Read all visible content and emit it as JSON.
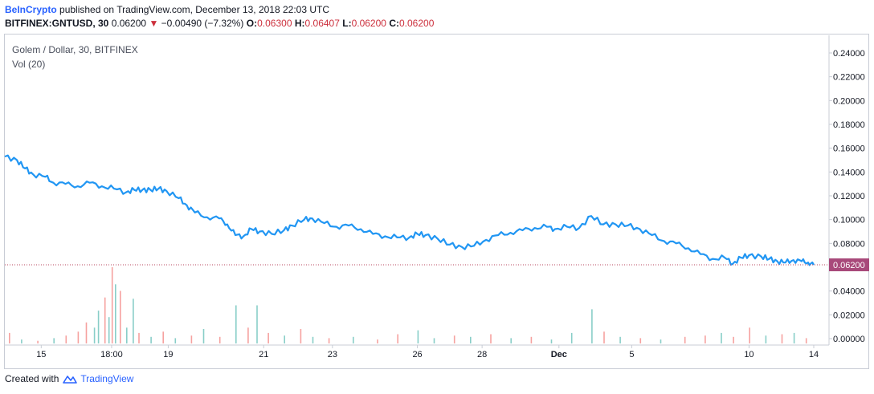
{
  "header": {
    "publisher": "BeInCrypto",
    "published_text": "published on TradingView.com, December 13, 2018 22:03 UTC",
    "symbol": "BITFINEX:GNTUSD, 30",
    "last": "0.06200",
    "change": "−0.00490 (−7.32%)",
    "o_label": "O:",
    "o_value": "0.06300",
    "h_label": "H:",
    "h_value": "0.06407",
    "l_label": "L:",
    "l_value": "0.06200",
    "c_label": "C:",
    "c_value": "0.06200"
  },
  "legend": {
    "title": "Golem / Dollar, 30, BITFINEX",
    "volume": "Vol (20)"
  },
  "footer": {
    "created_with": "Created with",
    "brand": "TradingView"
  },
  "colors": {
    "price_line": "#2196f3",
    "last_price_tag": "#a8497a",
    "volume_up": "#26a69a",
    "volume_down": "#ef5350",
    "axis_text": "#131722",
    "grid_border": "#c8ccd5"
  },
  "chart_data": {
    "type": "line",
    "grid": false,
    "y_axis": {
      "position": "right",
      "ticks": [
        "0.24000",
        "0.22000",
        "0.20000",
        "0.18000",
        "0.16000",
        "0.14000",
        "0.12000",
        "0.10000",
        "0.08000",
        "0.06000",
        "0.04000",
        "0.02000",
        "0.00000"
      ],
      "ylim": [
        0.0,
        0.245
      ]
    },
    "x_axis": {
      "ticks": [
        "15",
        "18:00",
        "19",
        "21",
        "23",
        "26",
        "28",
        "Dec",
        "5",
        "10",
        "14"
      ],
      "bold_ticks": [
        "Dec"
      ],
      "xlim": [
        0,
        100
      ]
    },
    "last_price_label": "0.06200",
    "last_price_value": 0.062,
    "series": [
      {
        "points": [
          [
            0,
            0.153
          ],
          [
            1.5,
            0.15
          ],
          [
            2.5,
            0.143
          ],
          [
            3.5,
            0.138
          ],
          [
            5,
            0.136
          ],
          [
            6,
            0.131
          ],
          [
            7.5,
            0.13
          ],
          [
            9,
            0.128
          ],
          [
            10.5,
            0.131
          ],
          [
            12,
            0.128
          ],
          [
            13.5,
            0.126
          ],
          [
            15,
            0.123
          ],
          [
            16,
            0.125
          ],
          [
            17,
            0.125
          ],
          [
            18,
            0.125
          ],
          [
            19,
            0.126
          ],
          [
            20,
            0.124
          ],
          [
            21.5,
            0.118
          ],
          [
            22.5,
            0.112
          ],
          [
            23.5,
            0.106
          ],
          [
            25,
            0.102
          ],
          [
            26.5,
            0.101
          ],
          [
            27.5,
            0.096
          ],
          [
            28.5,
            0.087
          ],
          [
            29.5,
            0.086
          ],
          [
            30.5,
            0.092
          ],
          [
            31.5,
            0.09
          ],
          [
            33,
            0.088
          ],
          [
            34.5,
            0.091
          ],
          [
            35.5,
            0.095
          ],
          [
            37,
            0.1
          ],
          [
            38,
            0.101
          ],
          [
            39.5,
            0.097
          ],
          [
            41,
            0.094
          ],
          [
            42.5,
            0.095
          ],
          [
            44,
            0.092
          ],
          [
            45.5,
            0.088
          ],
          [
            47,
            0.086
          ],
          [
            48.5,
            0.085
          ],
          [
            50,
            0.085
          ],
          [
            51,
            0.088
          ],
          [
            52,
            0.087
          ],
          [
            53.5,
            0.084
          ],
          [
            55,
            0.079
          ],
          [
            56.5,
            0.077
          ],
          [
            58,
            0.078
          ],
          [
            59.5,
            0.083
          ],
          [
            61,
            0.087
          ],
          [
            62.5,
            0.089
          ],
          [
            64,
            0.091
          ],
          [
            65.5,
            0.093
          ],
          [
            67,
            0.094
          ],
          [
            68,
            0.092
          ],
          [
            69.5,
            0.094
          ],
          [
            71,
            0.093
          ],
          [
            72.5,
            0.103
          ],
          [
            74,
            0.096
          ],
          [
            75.5,
            0.096
          ],
          [
            77,
            0.095
          ],
          [
            78.5,
            0.092
          ],
          [
            80,
            0.087
          ],
          [
            81.5,
            0.082
          ],
          [
            83,
            0.08
          ],
          [
            84.5,
            0.076
          ],
          [
            86,
            0.071
          ],
          [
            87.5,
            0.067
          ],
          [
            89,
            0.068
          ],
          [
            90,
            0.063
          ],
          [
            91,
            0.068
          ],
          [
            92,
            0.07
          ],
          [
            93.5,
            0.069
          ],
          [
            94.5,
            0.067
          ],
          [
            95.5,
            0.065
          ],
          [
            96.5,
            0.064
          ],
          [
            97.5,
            0.066
          ],
          [
            98.5,
            0.065
          ],
          [
            99.3,
            0.064
          ],
          [
            100,
            0.062
          ]
        ]
      }
    ],
    "volume": {
      "scale_max": 0.058,
      "bars": [
        [
          0.5,
          0.008,
          "down"
        ],
        [
          2,
          0.003,
          "up"
        ],
        [
          4,
          0.002,
          "down"
        ],
        [
          6,
          0.004,
          "up"
        ],
        [
          7.5,
          0.006,
          "down"
        ],
        [
          9,
          0.009,
          "down"
        ],
        [
          10,
          0.016,
          "down"
        ],
        [
          11,
          0.012,
          "up"
        ],
        [
          11.5,
          0.025,
          "up"
        ],
        [
          12.3,
          0.035,
          "down"
        ],
        [
          12.8,
          0.02,
          "up"
        ],
        [
          13.2,
          0.058,
          "down"
        ],
        [
          13.6,
          0.045,
          "up"
        ],
        [
          14.2,
          0.04,
          "down"
        ],
        [
          15,
          0.012,
          "up"
        ],
        [
          15.8,
          0.034,
          "up"
        ],
        [
          16.5,
          0.008,
          "down"
        ],
        [
          18,
          0.005,
          "up"
        ],
        [
          19.5,
          0.009,
          "down"
        ],
        [
          21,
          0.004,
          "up"
        ],
        [
          23,
          0.006,
          "down"
        ],
        [
          24.5,
          0.011,
          "up"
        ],
        [
          26.5,
          0.005,
          "down"
        ],
        [
          28.5,
          0.029,
          "up"
        ],
        [
          30,
          0.012,
          "down"
        ],
        [
          31.1,
          0.029,
          "up"
        ],
        [
          32.5,
          0.008,
          "down"
        ],
        [
          34.5,
          0.006,
          "up"
        ],
        [
          36.5,
          0.011,
          "down"
        ],
        [
          38,
          0.005,
          "up"
        ],
        [
          40,
          0.004,
          "down"
        ],
        [
          43,
          0.005,
          "up"
        ],
        [
          46,
          0.003,
          "down"
        ],
        [
          48.5,
          0.007,
          "down"
        ],
        [
          51,
          0.01,
          "up"
        ],
        [
          53,
          0.004,
          "up"
        ],
        [
          55.5,
          0.006,
          "down"
        ],
        [
          57.5,
          0.005,
          "up"
        ],
        [
          60,
          0.007,
          "down"
        ],
        [
          62.5,
          0.004,
          "up"
        ],
        [
          65,
          0.005,
          "down"
        ],
        [
          67.5,
          0.003,
          "up"
        ],
        [
          70,
          0.008,
          "up"
        ],
        [
          72.5,
          0.026,
          "up"
        ],
        [
          74,
          0.009,
          "down"
        ],
        [
          76,
          0.005,
          "up"
        ],
        [
          78.5,
          0.004,
          "down"
        ],
        [
          81,
          0.003,
          "up"
        ],
        [
          84,
          0.005,
          "down"
        ],
        [
          86.5,
          0.006,
          "down"
        ],
        [
          88.5,
          0.008,
          "up"
        ],
        [
          90,
          0.005,
          "down"
        ],
        [
          92,
          0.012,
          "down"
        ],
        [
          94,
          0.006,
          "up"
        ],
        [
          96,
          0.007,
          "down"
        ],
        [
          97.5,
          0.008,
          "up"
        ],
        [
          99,
          0.004,
          "down"
        ]
      ]
    }
  }
}
